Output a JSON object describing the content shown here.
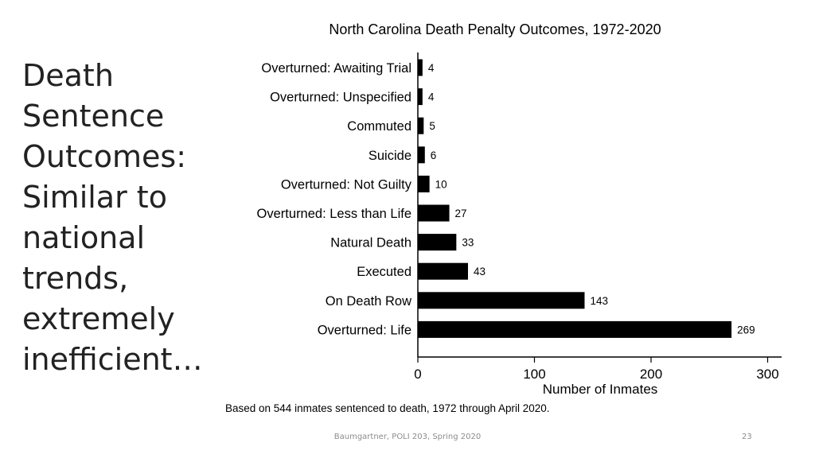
{
  "slide": {
    "title_lines": [
      "Death",
      "Sentence",
      "Outcomes:",
      "Similar to",
      "national",
      "trends,",
      "extremely",
      "inefficient…"
    ],
    "footer": "Baumgartner, POLI 203, Spring 2020",
    "page_number": "23"
  },
  "chart_data": {
    "type": "bar",
    "orientation": "horizontal",
    "title": "North Carolina Death Penalty Outcomes, 1972-2020",
    "xlabel": "Number of Inmates",
    "ylabel": "",
    "note": "Based on 544 inmates sentenced to death, 1972 through April 2020.",
    "categories": [
      "Overturned: Awaiting Trial",
      "Overturned: Unspecified",
      "Commuted",
      "Suicide",
      "Overturned: Not Guilty",
      "Overturned: Less than Life",
      "Natural Death",
      "Executed",
      "On Death Row",
      "Overturned: Life"
    ],
    "values": [
      4,
      4,
      5,
      6,
      10,
      27,
      33,
      43,
      143,
      269
    ],
    "xlim": [
      0,
      300
    ],
    "xticks": [
      0,
      100,
      200,
      300
    ],
    "grid": false,
    "bar_color": "#000000"
  }
}
